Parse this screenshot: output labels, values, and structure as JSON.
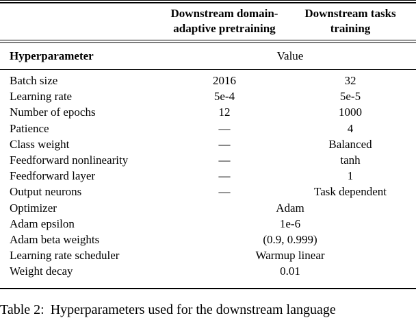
{
  "table": {
    "col_headers": [
      {
        "line1": "Downstream domain-",
        "line2": "adaptive pretraining"
      },
      {
        "line1": "Downstream tasks",
        "line2": "training"
      }
    ],
    "subheader": {
      "label": "Hyperparameter",
      "value": "Value"
    },
    "rows": [
      {
        "label": "Batch size",
        "pretraining": "2016",
        "tasks": "32"
      },
      {
        "label": "Learning rate",
        "pretraining": "5e-4",
        "tasks": "5e-5"
      },
      {
        "label": "Number of epochs",
        "pretraining": "12",
        "tasks": "1000"
      },
      {
        "label": "Patience",
        "pretraining": "—",
        "tasks": "4"
      },
      {
        "label": "Class weight",
        "pretraining": "—",
        "tasks": "Balanced"
      },
      {
        "label": "Feedforward nonlinearity",
        "pretraining": "—",
        "tasks": "tanh"
      },
      {
        "label": "Feedforward layer",
        "pretraining": "—",
        "tasks": "1"
      },
      {
        "label": "Output neurons",
        "pretraining": "—",
        "tasks": "Task dependent"
      },
      {
        "label": "Optimizer",
        "span": "Adam"
      },
      {
        "label": "Adam epsilon",
        "span": "1e-6"
      },
      {
        "label": "Adam beta weights",
        "span": "(0.9, 0.999)"
      },
      {
        "label": "Learning rate scheduler",
        "span": "Warmup linear"
      },
      {
        "label": "Weight decay",
        "span": "0.01"
      }
    ],
    "caption": {
      "label": "Table 2:",
      "text": "Hyperparameters used for the downstream language"
    }
  }
}
